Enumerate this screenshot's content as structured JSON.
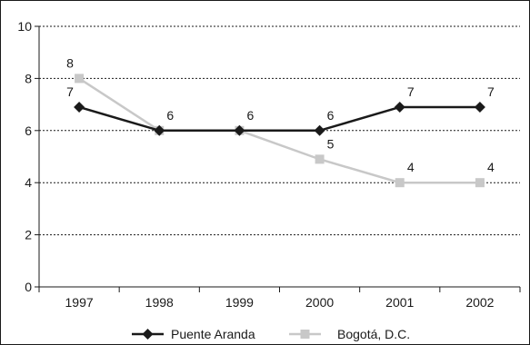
{
  "chart_data": {
    "type": "line",
    "title": "",
    "xlabel": "",
    "ylabel": "",
    "categories": [
      "1997",
      "1998",
      "1999",
      "2000",
      "2001",
      "2002"
    ],
    "ylim": [
      0,
      10
    ],
    "yticks": [
      "0",
      "2",
      "4",
      "6",
      "8",
      "10"
    ],
    "grid": "horizontal dotted",
    "legend_position": "bottom",
    "series": [
      {
        "name": "Puente Aranda",
        "values": [
          6.9,
          6.0,
          6.0,
          6.0,
          6.9,
          6.9
        ],
        "labels": [
          "7",
          "6",
          "6",
          "6",
          "7",
          "7"
        ],
        "color": "#1a1a1a",
        "marker": "diamond"
      },
      {
        "name": "Bogotá, D.C.",
        "values": [
          8.0,
          6.0,
          6.0,
          4.9,
          4.0,
          4.0
        ],
        "labels": [
          "8",
          "",
          "",
          "5",
          "4",
          "4"
        ],
        "color": "#c8c8c8",
        "marker": "square"
      }
    ]
  }
}
